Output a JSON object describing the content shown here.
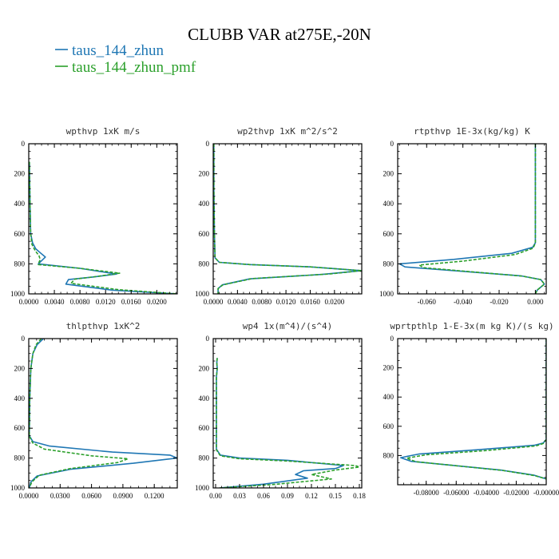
{
  "figure": {
    "title": "CLUBB VAR at275E,-20N",
    "legend": [
      {
        "label": "taus_144_zhun",
        "color": "#1f77b4",
        "dash": "solid"
      },
      {
        "label": "taus_144_zhun_pmf",
        "color": "#2ca02c",
        "dash": "dashed"
      }
    ]
  },
  "chart_data": [
    {
      "type": "line",
      "title": "wpthvp  1xK m/s",
      "xlim": [
        0,
        0.0232
      ],
      "ylim": [
        1000,
        0
      ],
      "xticks": [
        0,
        0.004,
        0.008,
        0.012,
        0.016,
        0.02
      ],
      "xticklabels": [
        "0.0000",
        "0.0040",
        "0.0080",
        "0.0120",
        "0.0160",
        "0.0200"
      ],
      "yticks": [
        0,
        200,
        400,
        600,
        800,
        1000
      ],
      "yticklabels": [
        "0",
        "200",
        "400",
        "600",
        "800",
        "1000"
      ],
      "grid": false,
      "series": [
        {
          "name": "taus_144_zhun",
          "color": "#1f77b4",
          "dash": "solid",
          "x": [
            0.0001,
            0.0002,
            0.0003,
            0.0006,
            0.0011,
            0.0019,
            0.0026,
            0.002,
            0.0015,
            0.008,
            0.0137,
            0.01,
            0.0062,
            0.0058,
            0.013,
            0.0232
          ],
          "y": [
            120,
            400,
            600,
            660,
            700,
            730,
            755,
            780,
            800,
            830,
            868,
            888,
            905,
            935,
            975,
            1000
          ]
        },
        {
          "name": "taus_144_zhun_pmf",
          "color": "#2ca02c",
          "dash": "dashed",
          "x": [
            0.0001,
            0.0002,
            0.0003,
            0.0005,
            0.001,
            0.0016,
            0.0018,
            0.0016,
            0.0015,
            0.008,
            0.0142,
            0.011,
            0.0072,
            0.0066,
            0.014,
            0.0232
          ],
          "y": [
            120,
            400,
            600,
            670,
            712,
            745,
            772,
            790,
            805,
            830,
            862,
            882,
            902,
            930,
            972,
            1000
          ]
        }
      ]
    },
    {
      "type": "line",
      "title": "wp2thvp  1xK m^2/s^2",
      "xlim": [
        0,
        0.0245
      ],
      "ylim": [
        1000,
        0
      ],
      "xticks": [
        0,
        0.004,
        0.008,
        0.012,
        0.016,
        0.02
      ],
      "xticklabels": [
        "0.0000",
        "0.0040",
        "0.0080",
        "0.0120",
        "0.0160",
        "0.0200"
      ],
      "yticks": [
        0,
        200,
        400,
        600,
        800,
        1000
      ],
      "yticklabels": [
        "0",
        "200",
        "400",
        "600",
        "800",
        "1000"
      ],
      "grid": false,
      "series": [
        {
          "name": "taus_144_zhun",
          "color": "#1f77b4",
          "dash": "solid",
          "x": [
            0.0001,
            0.0001,
            0.0002,
            0.0003,
            0.001,
            0.006,
            0.016,
            0.0245,
            0.018,
            0.006,
            0.0015,
            0.0008,
            0.0008
          ],
          "y": [
            0,
            300,
            600,
            760,
            790,
            805,
            820,
            845,
            870,
            900,
            940,
            965,
            1000
          ]
        },
        {
          "name": "taus_144_zhun_pmf",
          "color": "#2ca02c",
          "dash": "dashed",
          "x": [
            0.0001,
            0.0001,
            0.0002,
            0.0003,
            0.001,
            0.006,
            0.016,
            0.0245,
            0.019,
            0.0065,
            0.0016,
            0.0008,
            0.0008
          ],
          "y": [
            0,
            300,
            600,
            760,
            790,
            805,
            820,
            845,
            868,
            898,
            940,
            965,
            1000
          ]
        }
      ]
    },
    {
      "type": "line",
      "title": "rtpthvp  1E-3x(kg/kg) K",
      "xlim": [
        -0.076,
        0.006
      ],
      "ylim": [
        1000,
        0
      ],
      "xticks": [
        -0.06,
        -0.04,
        -0.02,
        0
      ],
      "xticklabels": [
        "-0.060",
        "-0.040",
        "-0.020",
        "0.000"
      ],
      "yticks": [
        0,
        200,
        400,
        600,
        800,
        1000
      ],
      "yticklabels": [
        "0",
        "200",
        "400",
        "600",
        "800",
        "1000"
      ],
      "grid": false,
      "series": [
        {
          "name": "taus_144_zhun",
          "color": "#1f77b4",
          "dash": "solid",
          "x": [
            0.0,
            0.0,
            0.0,
            -0.0015,
            -0.013,
            -0.045,
            -0.075,
            -0.072,
            -0.04,
            -0.008,
            0.003,
            0.005,
            0.001,
            0.0
          ],
          "y": [
            0,
            400,
            660,
            690,
            730,
            770,
            800,
            820,
            850,
            880,
            905,
            935,
            975,
            1000
          ]
        },
        {
          "name": "taus_144_zhun_pmf",
          "color": "#2ca02c",
          "dash": "dashed",
          "x": [
            0.0,
            0.0,
            0.0,
            -0.0012,
            -0.011,
            -0.04,
            -0.064,
            -0.062,
            -0.036,
            -0.007,
            0.003,
            0.005,
            0.001,
            0.0
          ],
          "y": [
            0,
            400,
            660,
            695,
            738,
            782,
            808,
            825,
            852,
            882,
            905,
            935,
            975,
            1000
          ]
        }
      ]
    },
    {
      "type": "line",
      "title": "thlpthvp  1xK^2",
      "xlim": [
        0,
        0.142
      ],
      "ylim": [
        1000,
        0
      ],
      "xticks": [
        0,
        0.03,
        0.06,
        0.09,
        0.12
      ],
      "xticklabels": [
        "0.0000",
        "0.0300",
        "0.0600",
        "0.0900",
        "0.1200"
      ],
      "yticks": [
        0,
        200,
        400,
        600,
        800,
        1000
      ],
      "yticklabels": [
        "0",
        "200",
        "400",
        "600",
        "800",
        "1000"
      ],
      "grid": false,
      "series": [
        {
          "name": "taus_144_zhun",
          "color": "#1f77b4",
          "dash": "solid",
          "x": [
            0.014,
            0.008,
            0.004,
            0.002,
            0.001,
            0.0005,
            0.004,
            0.02,
            0.08,
            0.135,
            0.142,
            0.1,
            0.04,
            0.008,
            0.002,
            0.0005
          ],
          "y": [
            0,
            40,
            100,
            200,
            400,
            650,
            690,
            720,
            760,
            780,
            800,
            835,
            875,
            920,
            960,
            1000
          ]
        },
        {
          "name": "taus_144_zhun_pmf",
          "color": "#2ca02c",
          "dash": "dashed",
          "x": [
            0.012,
            0.007,
            0.004,
            0.002,
            0.001,
            0.0005,
            0.004,
            0.015,
            0.06,
            0.095,
            0.085,
            0.04,
            0.01,
            0.003,
            0.0005
          ],
          "y": [
            0,
            40,
            100,
            200,
            400,
            655,
            700,
            740,
            785,
            805,
            830,
            870,
            915,
            960,
            1000
          ]
        }
      ]
    },
    {
      "type": "line",
      "title": "wp4  1x(m^4)/(s^4)",
      "xlim": [
        -0.003,
        0.183
      ],
      "ylim": [
        1000,
        0
      ],
      "xticks": [
        0,
        0.03,
        0.06,
        0.09,
        0.12,
        0.15,
        0.18
      ],
      "xticklabels": [
        "0.00",
        "0.03",
        "0.06",
        "0.09",
        "0.12",
        "0.15",
        "0.18"
      ],
      "yticks": [
        0,
        200,
        400,
        600,
        800,
        1000
      ],
      "yticklabels": [
        "0",
        "200",
        "400",
        "600",
        "800",
        "1000"
      ],
      "grid": false,
      "series": [
        {
          "name": "taus_144_zhun",
          "color": "#1f77b4",
          "dash": "solid",
          "x": [
            0.002,
            0.0015,
            0.002,
            0.001,
            0.001,
            0.006,
            0.03,
            0.09,
            0.16,
            0.15,
            0.11,
            0.1,
            0.115,
            0.06,
            0.005
          ],
          "y": [
            130,
            160,
            200,
            260,
            740,
            780,
            800,
            815,
            850,
            870,
            885,
            910,
            935,
            975,
            1000
          ]
        },
        {
          "name": "taus_144_zhun_pmf",
          "color": "#2ca02c",
          "dash": "dashed",
          "x": [
            0.002,
            0.0015,
            0.002,
            0.001,
            0.001,
            0.006,
            0.03,
            0.09,
            0.175,
            0.18,
            0.15,
            0.12,
            0.145,
            0.07,
            0.005
          ],
          "y": [
            130,
            160,
            200,
            260,
            745,
            785,
            805,
            820,
            850,
            860,
            880,
            910,
            940,
            978,
            1000
          ]
        }
      ]
    },
    {
      "type": "line",
      "title": "wprtpthlp  1-E-3x(m kg K)/(s kg)",
      "xlim": [
        -0.099,
        0
      ],
      "ylim": [
        1000,
        0
      ],
      "xticks": [
        -0.08,
        -0.06,
        -0.04,
        -0.02,
        0
      ],
      "xticklabels": [
        "-0.08000",
        "-0.06000",
        "-0.04000",
        "-0.02000",
        "-0.00000"
      ],
      "yticks": [
        0,
        200,
        400,
        600,
        800
      ],
      "yticklabels": [
        "0",
        "200",
        "400",
        "600",
        "800"
      ],
      "grid": false,
      "series": [
        {
          "name": "taus_144_zhun",
          "color": "#1f77b4",
          "dash": "solid",
          "x": [
            0.0,
            0.0,
            -0.002,
            -0.008,
            -0.045,
            -0.085,
            -0.097,
            -0.09,
            -0.06,
            -0.03,
            -0.008,
            0.0
          ],
          "y": [
            0,
            690,
            715,
            730,
            760,
            790,
            815,
            840,
            870,
            900,
            935,
            960
          ]
        },
        {
          "name": "taus_144_zhun_pmf",
          "color": "#2ca02c",
          "dash": "dashed",
          "x": [
            0.0,
            0.0,
            -0.002,
            -0.007,
            -0.04,
            -0.08,
            -0.093,
            -0.087,
            -0.058,
            -0.029,
            -0.008,
            0.0
          ],
          "y": [
            0,
            690,
            718,
            735,
            766,
            795,
            818,
            842,
            872,
            902,
            937,
            960
          ]
        }
      ]
    }
  ]
}
